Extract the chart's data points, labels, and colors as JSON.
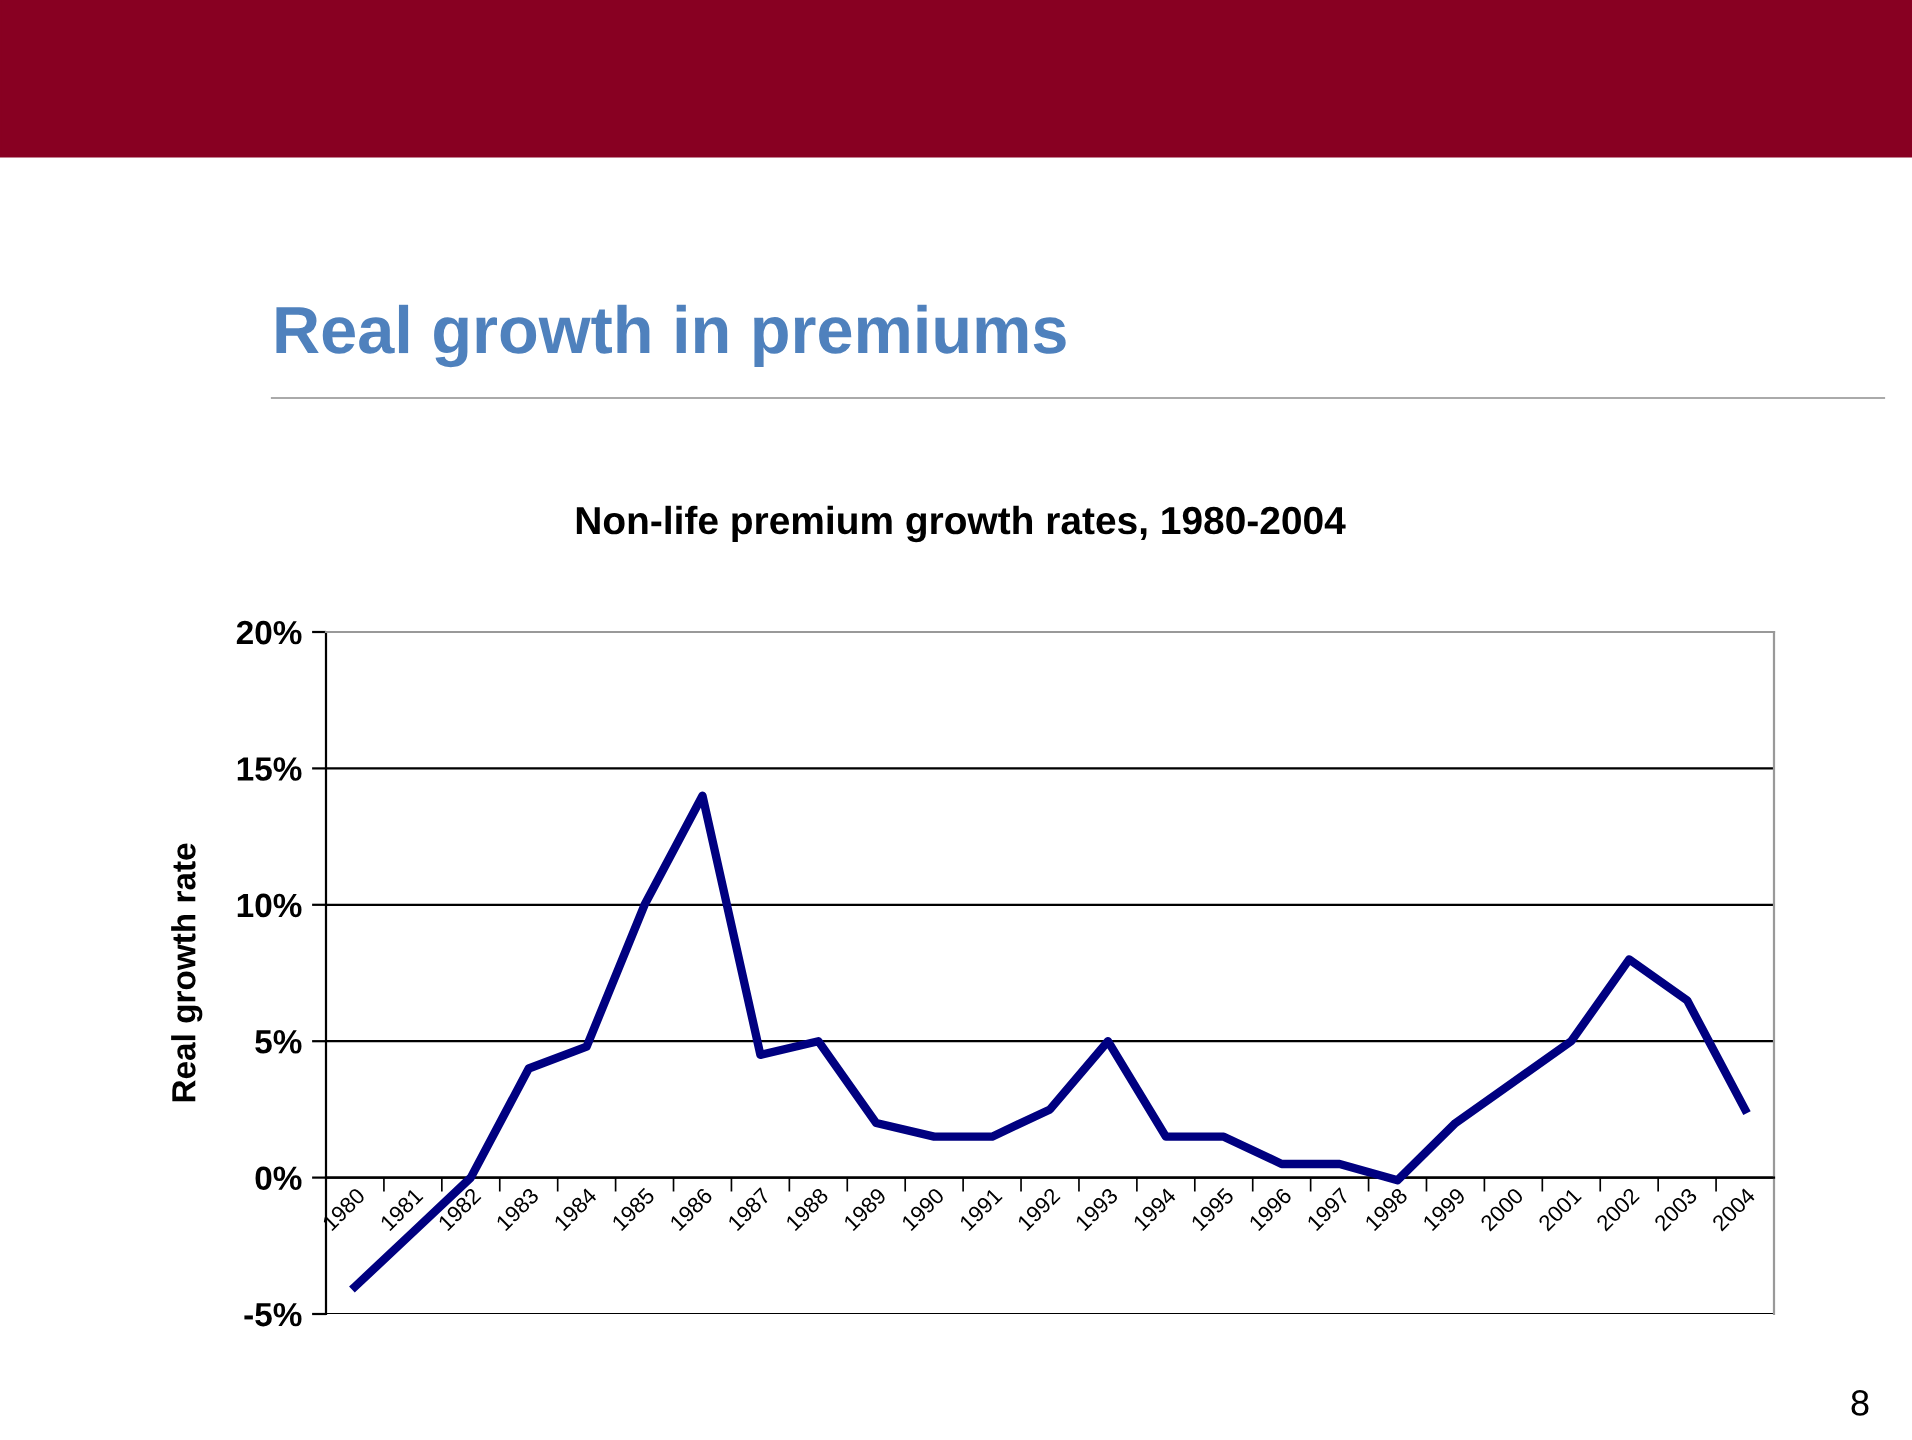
{
  "chart_data": {
    "type": "line",
    "title": "Real growth in premiums",
    "subtitle": "Non-life premium growth rates, 1980-2004",
    "ylabel": "Real growth rate",
    "categories": [
      "1980",
      "1981",
      "1982",
      "1983",
      "1984",
      "1985",
      "1986",
      "1987",
      "1988",
      "1989",
      "1990",
      "1991",
      "1992",
      "1993",
      "1994",
      "1995",
      "1996",
      "1997",
      "1998",
      "1999",
      "2000",
      "2001",
      "2002",
      "2003",
      "2004"
    ],
    "series": [
      {
        "color": "#000080",
        "values": [
          -4,
          -2,
          0,
          4,
          4.8,
          10,
          14,
          4.5,
          5,
          2,
          1.5,
          1.5,
          2.5,
          5,
          1.5,
          1.5,
          0.5,
          0.5,
          -0.1,
          2,
          3.5,
          5,
          8,
          6.5,
          2.5
        ]
      }
    ],
    "ylim": [
      -5,
      20
    ],
    "yticks": [
      {
        "value": -5,
        "label": "-5%"
      },
      {
        "value": 0,
        "label": "0%"
      },
      {
        "value": 5,
        "label": "5%"
      },
      {
        "value": 10,
        "label": "10%"
      },
      {
        "value": 15,
        "label": "15%"
      },
      {
        "value": 20,
        "label": "20%"
      }
    ],
    "grid": "y",
    "legend": false,
    "marker": "none",
    "line_style": "solid",
    "annotations": [
      "8"
    ]
  }
}
